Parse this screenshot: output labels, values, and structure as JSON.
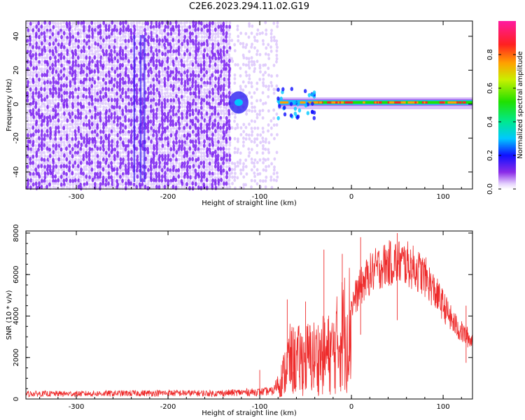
{
  "title": "C2E6.2023.294.11.02.G19",
  "colors": {
    "snr_line": "#ee2b2b",
    "noise_dot": "#7a1ff0",
    "noise_light": "#d9c2fb",
    "axis": "#000000"
  },
  "chart_data": [
    {
      "type": "heatmap",
      "title": "C2E6.2023.294.11.02.G19",
      "xlabel": "Height of straight line (km)",
      "ylabel": "Frequency (Hz)",
      "xlim": [
        -355,
        132
      ],
      "ylim": [
        -50,
        49
      ],
      "xticks": [
        -300,
        -200,
        -100,
        0,
        100
      ],
      "yticks": [
        -40,
        -20,
        0,
        20,
        40
      ],
      "grid": false,
      "colorbar": {
        "label": "Normalized spectral amplitude",
        "range": [
          0,
          1
        ],
        "ticks": [
          0.0,
          0.2,
          0.4,
          0.6,
          0.8
        ],
        "tick_labels": [
          "0.0",
          "0.2",
          "0.4",
          "0.6",
          "0.8"
        ]
      },
      "regions": [
        {
          "x": [
            -355,
            -133
          ],
          "content": "broadband noise, amplitude 0.05-0.25"
        },
        {
          "x": [
            -133,
            -80
          ],
          "content": "faint noise with blob near 0 Hz at -123 km"
        },
        {
          "x": [
            -80,
            132
          ],
          "content": "signal band centered 0-2 Hz, amplitude up to 0.9"
        }
      ]
    },
    {
      "type": "line",
      "xlabel": "Height of straight line (km)",
      "ylabel": "SNR (10 * v/v)",
      "xlim": [
        -355,
        132
      ],
      "ylim": [
        0,
        8100
      ],
      "xticks": [
        -300,
        -200,
        -100,
        0,
        100
      ],
      "yticks": [
        0,
        2000,
        4000,
        6000,
        8000
      ],
      "grid": false,
      "envelope": {
        "x": [
          -355,
          -300,
          -250,
          -200,
          -150,
          -120,
          -100,
          -85,
          -75,
          -68,
          -60,
          -50,
          -40,
          -30,
          -20,
          -10,
          0,
          10,
          20,
          30,
          40,
          50,
          60,
          70,
          80,
          90,
          100,
          110,
          120,
          132
        ],
        "y": [
          280,
          280,
          300,
          320,
          300,
          350,
          380,
          420,
          1500,
          2700,
          2600,
          2800,
          2900,
          3000,
          3200,
          4500,
          5200,
          6200,
          6900,
          7300,
          7500,
          7600,
          7500,
          7200,
          6800,
          6000,
          5200,
          4300,
          3700,
          3200
        ]
      },
      "spikes": [
        {
          "x": -100,
          "y": 1400
        },
        {
          "x": -70,
          "y": 4800
        },
        {
          "x": -50,
          "y": 4700
        },
        {
          "x": -30,
          "y": 7200
        },
        {
          "x": -10,
          "y": 7000
        },
        {
          "x": 10,
          "y": 7800
        },
        {
          "x": 50,
          "y": 8000
        },
        {
          "x": 125,
          "y": 4500
        }
      ]
    }
  ]
}
